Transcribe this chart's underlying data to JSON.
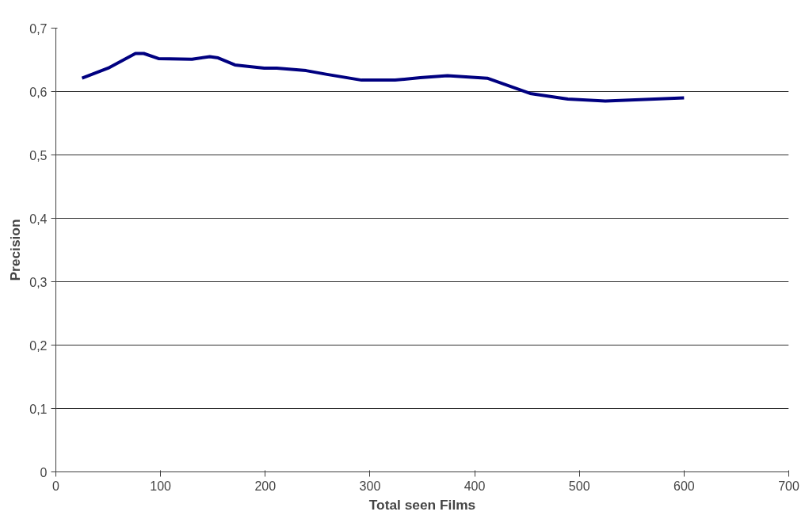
{
  "chart_data": {
    "type": "line",
    "xlabel": "Total seen Films",
    "ylabel": "Precision",
    "x": [
      25,
      50,
      76,
      84,
      98,
      130,
      147,
      155,
      171,
      199,
      211,
      239,
      259,
      292,
      324,
      348,
      374,
      412,
      453,
      489,
      525,
      600
    ],
    "series": [
      {
        "color": "#000080",
        "values": [
          0.621,
          0.637,
          0.66,
          0.66,
          0.652,
          0.651,
          0.655,
          0.653,
          0.642,
          0.637,
          0.637,
          0.633,
          0.627,
          0.618,
          0.618,
          0.622,
          0.625,
          0.621,
          0.597,
          0.588,
          0.585,
          0.59
        ]
      }
    ],
    "xlim": [
      0,
      700
    ],
    "xticks": [
      0,
      100,
      200,
      300,
      400,
      500,
      600,
      700
    ],
    "ylim": [
      0,
      0.7
    ],
    "yticks": [
      {
        "value": 0,
        "label": "0"
      },
      {
        "value": 0.1,
        "label": "0,1"
      },
      {
        "value": 0.2,
        "label": "0,2"
      },
      {
        "value": 0.3,
        "label": "0,3"
      },
      {
        "value": 0.4,
        "label": "0,4"
      },
      {
        "value": 0.5,
        "label": "0,5"
      },
      {
        "value": 0.6,
        "label": "0,6"
      },
      {
        "value": 0.7,
        "label": "0,7"
      }
    ],
    "grid": "y",
    "marker": "none",
    "line_style": "solid"
  }
}
